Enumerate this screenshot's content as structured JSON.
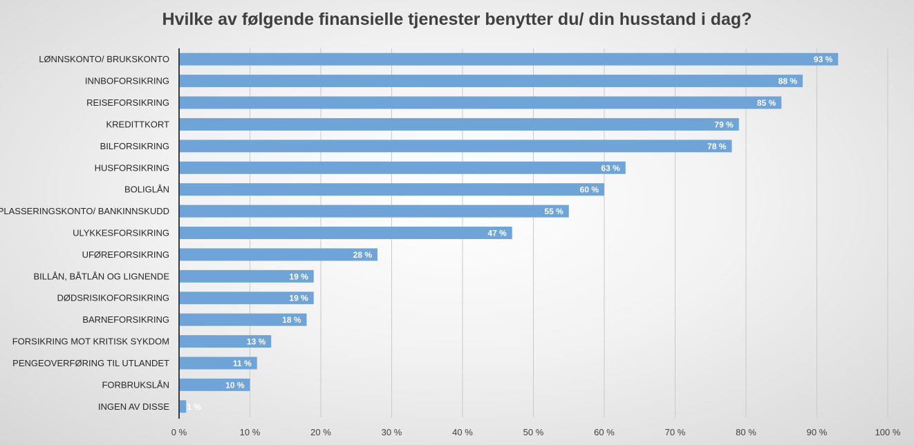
{
  "chart_data": {
    "type": "bar",
    "orientation": "horizontal",
    "title": "Hvilke av følgende finansielle tjenester benytter du/ din husstand i dag?",
    "categories": [
      "LØNNSKONTO/ BRUKSKONTO",
      "INNBOFORSIKRING",
      "REISEFORSIKRING",
      "KREDITTKORT",
      "BILFORSIKRING",
      "HUSFORSIKRING",
      "BOLIGLÅN",
      "PLASSERINGSKONTO/ BANKINNSKUDD",
      "ULYKKESFORSIKRING",
      "UFØREFORSIKRING",
      "BILLÅN, BÅTLÅN OG LIGNENDE",
      "DØDSRISIKOFORSIKRING",
      "BARNEFORSIKRING",
      "FORSIKRING MOT KRITISK SYKDOM",
      "PENGEOVERFØRING TIL UTLANDET",
      "FORBRUKSLÅN",
      "INGEN AV DISSE"
    ],
    "values": [
      93,
      88,
      85,
      79,
      78,
      63,
      60,
      55,
      47,
      28,
      19,
      19,
      18,
      13,
      11,
      10,
      1
    ],
    "data_labels": [
      "93 %",
      "88 %",
      "85 %",
      "79 %",
      "78 %",
      "63 %",
      "60 %",
      "55 %",
      "47 %",
      "28 %",
      "19 %",
      "19 %",
      "18 %",
      "13 %",
      "11 %",
      "10 %",
      "1 %"
    ],
    "xlim": [
      0,
      100
    ],
    "x_ticks": [
      "0 %",
      "10 %",
      "20 %",
      "30 %",
      "40 %",
      "50 %",
      "60 %",
      "70 %",
      "80 %",
      "90 %",
      "100 %"
    ],
    "grid": true,
    "legend": "none",
    "bar_color": "#6fa4d9",
    "label_color": "#ffffff"
  }
}
